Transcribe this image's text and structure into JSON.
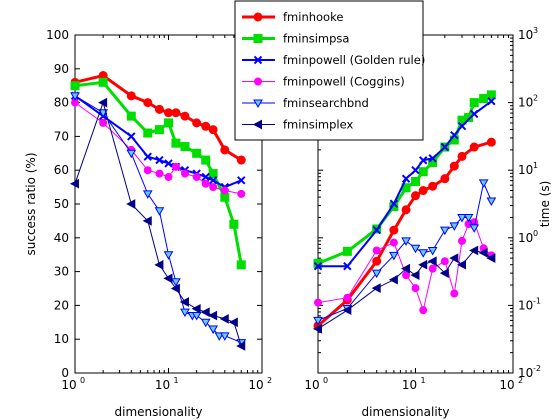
{
  "chart_data": [
    {
      "type": "line",
      "xscale": "log",
      "xlim": [
        1,
        100
      ],
      "ylim": [
        0,
        100
      ],
      "xlabel": "dimensionality",
      "ylabel": "success ratio (%)",
      "xtick_base": "10",
      "xtick_exponents": [
        "0",
        "1",
        "2"
      ],
      "yticks": [
        "0",
        "10",
        "20",
        "30",
        "40",
        "50",
        "60",
        "70",
        "80",
        "90",
        "100"
      ],
      "series": [
        {
          "name": "fminhooke",
          "color": "#ff0000",
          "marker": "circle",
          "x": [
            1,
            2,
            4,
            6,
            8,
            10,
            12,
            15,
            20,
            25,
            30,
            40,
            60
          ],
          "y": [
            86,
            88,
            82,
            80,
            78,
            77,
            77,
            76,
            74,
            73,
            72,
            66,
            63
          ]
        },
        {
          "name": "fminsimpsa",
          "color": "#00dd00",
          "marker": "square",
          "x": [
            1,
            2,
            4,
            6,
            8,
            10,
            12,
            15,
            20,
            25,
            30,
            40,
            50,
            60
          ],
          "y": [
            85,
            86,
            76,
            71,
            72,
            74,
            68,
            67,
            65,
            63,
            59,
            52,
            44,
            32
          ]
        },
        {
          "name": "fminpowell (Golden rule)",
          "color": "#0000ff",
          "marker": "x",
          "x": [
            1,
            2,
            4,
            6,
            8,
            10,
            12,
            15,
            20,
            25,
            30,
            40,
            60
          ],
          "y": [
            82,
            76,
            70,
            64,
            63,
            62,
            61,
            60,
            59,
            58,
            57,
            55,
            57
          ]
        },
        {
          "name": "fminpowell (Coggins)",
          "color": "#ff00ff",
          "marker": "circle-small",
          "x": [
            1,
            2,
            4,
            6,
            8,
            10,
            12,
            15,
            20,
            25,
            30,
            40,
            60
          ],
          "y": [
            80,
            74,
            66,
            60,
            59,
            58,
            61,
            59,
            58,
            56,
            55,
            54,
            53
          ]
        },
        {
          "name": "fminsearchbnd",
          "color": "#0000ff",
          "marker": "triangle-down",
          "x": [
            1,
            2,
            4,
            6,
            8,
            10,
            12,
            15,
            18,
            20,
            25,
            30,
            35,
            40,
            60
          ],
          "y": [
            82,
            77,
            65,
            53,
            48,
            35,
            27,
            18,
            17,
            17,
            15,
            13,
            11,
            11,
            9
          ]
        },
        {
          "name": "fminsimplex",
          "color": "#000088",
          "marker": "triangle-left",
          "x": [
            1,
            2,
            4,
            6,
            8,
            10,
            12,
            15,
            20,
            25,
            30,
            40,
            50,
            60
          ],
          "y": [
            56,
            80,
            50,
            45,
            32,
            28,
            25,
            21,
            19,
            18,
            17,
            16,
            15,
            8
          ]
        }
      ]
    },
    {
      "type": "line",
      "xscale": "log",
      "yscale": "log",
      "xlim": [
        1,
        100
      ],
      "ylim": [
        0.01,
        1000
      ],
      "xlabel": "dimensionality",
      "ylabel": "time (s)",
      "xtick_base": "10",
      "xtick_exponents": [
        "0",
        "1",
        "2"
      ],
      "ytick_base": "10",
      "ytick_exponents": [
        "-2",
        "-1",
        "0",
        "1",
        "2",
        "3"
      ],
      "series": [
        {
          "name": "fminhooke",
          "color": "#ff0000",
          "marker": "circle",
          "x": [
            1,
            2,
            4,
            6,
            8,
            10,
            12,
            15,
            20,
            25,
            30,
            40,
            60
          ],
          "y": [
            0.05,
            0.12,
            0.45,
            1.3,
            2.6,
            4.2,
            5.0,
            5.8,
            7.5,
            11.5,
            16,
            22,
            26
          ]
        },
        {
          "name": "fminsimpsa",
          "color": "#00dd00",
          "marker": "square",
          "x": [
            1,
            2,
            4,
            6,
            8,
            10,
            12,
            15,
            20,
            25,
            30,
            35,
            40,
            50,
            60
          ],
          "y": [
            0.42,
            0.63,
            1.35,
            2.9,
            5.5,
            6.8,
            9.5,
            13,
            22,
            28,
            55,
            60,
            100,
            115,
            130
          ]
        },
        {
          "name": "fminpowell (Golden rule)",
          "color": "#0000ff",
          "marker": "x",
          "x": [
            1,
            2,
            4,
            6,
            8,
            10,
            12,
            15,
            20,
            25,
            30,
            40,
            60
          ],
          "y": [
            0.38,
            0.38,
            1.3,
            3.2,
            7.5,
            10,
            14,
            15,
            22,
            33,
            45,
            68,
            105
          ]
        },
        {
          "name": "fminpowell (Coggins)",
          "color": "#ff00ff",
          "marker": "circle-small",
          "x": [
            1,
            2,
            4,
            6,
            8,
            10,
            12,
            15,
            20,
            25,
            30,
            35,
            40,
            50,
            60
          ],
          "y": [
            0.11,
            0.13,
            0.65,
            0.85,
            0.28,
            0.18,
            0.085,
            0.35,
            0.45,
            0.15,
            0.9,
            1.6,
            1.7,
            0.7,
            0.55
          ]
        },
        {
          "name": "fminsearchbnd",
          "color": "#0000ff",
          "marker": "triangle-down",
          "x": [
            1,
            2,
            4,
            6,
            8,
            10,
            12,
            15,
            20,
            25,
            30,
            35,
            40,
            50,
            60
          ],
          "y": [
            0.06,
            0.09,
            0.3,
            0.55,
            0.9,
            0.7,
            0.6,
            0.65,
            1.3,
            1.5,
            2.0,
            2.0,
            1.4,
            6.5,
            3.5
          ]
        },
        {
          "name": "fminsimplex",
          "color": "#000088",
          "marker": "triangle-left",
          "x": [
            1,
            2,
            4,
            6,
            8,
            10,
            12,
            15,
            20,
            25,
            30,
            40,
            50,
            60
          ],
          "y": [
            0.045,
            0.085,
            0.18,
            0.24,
            0.35,
            0.28,
            0.4,
            0.45,
            0.3,
            0.5,
            0.4,
            0.65,
            0.6,
            0.5
          ]
        }
      ]
    }
  ],
  "legend": {
    "placement": "top-center"
  }
}
